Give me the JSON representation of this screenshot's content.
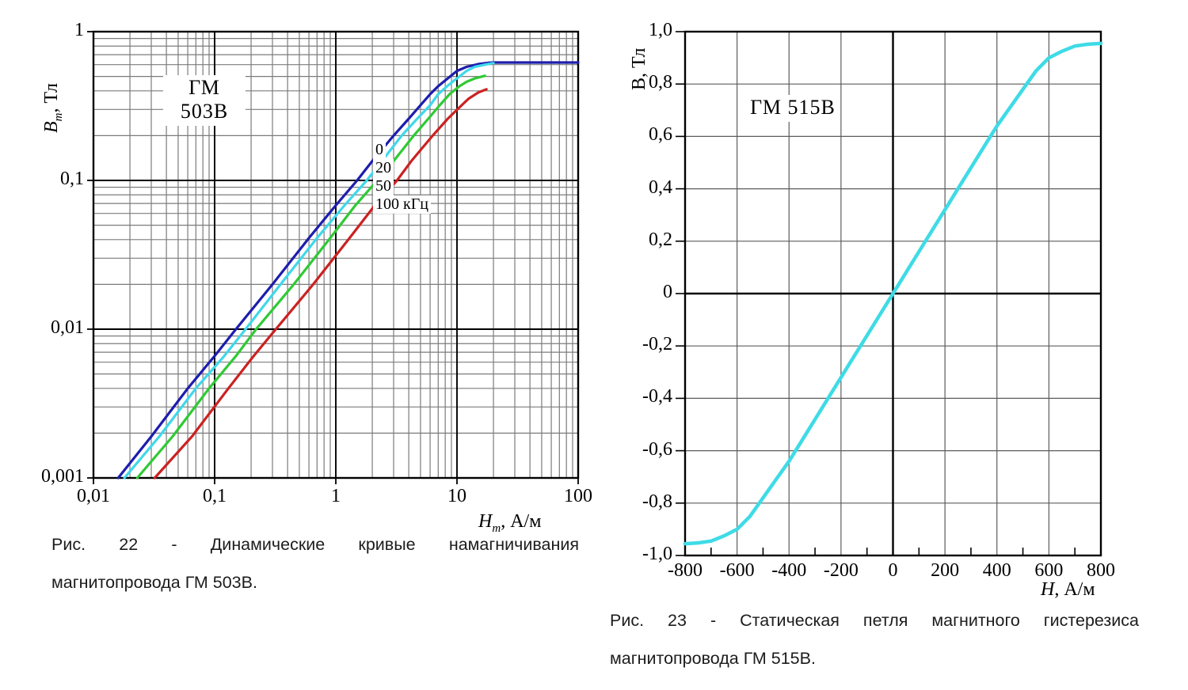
{
  "figure22": {
    "title": "ГМ 503В",
    "y_axis": {
      "symbol": "B",
      "sub": "m",
      "unit": ", Тл"
    },
    "x_axis": {
      "symbol": "H",
      "sub": "m",
      "unit": ", А/м"
    },
    "legend": [
      {
        "label": "0",
        "color": "#1d1dae"
      },
      {
        "label": "20",
        "color": "#3fd8ea"
      },
      {
        "label": "50",
        "color": "#2fca34"
      },
      {
        "label": "100 кГц",
        "color": "#cc2121"
      }
    ],
    "caption": {
      "line1": "Рис. 22 - Динамические кривые намагничивания",
      "line2": "магнитопровода ГМ 503В."
    }
  },
  "figure23": {
    "title": "ГМ 515В",
    "y_axis": {
      "symbol": "В",
      "sub": "",
      "unit": ", Тл"
    },
    "x_axis": {
      "symbol": "H",
      "sub": "",
      "unit": ", А/м"
    },
    "caption": {
      "line1": "Рис. 23 -  Статическая петля магнитного гистерезиса",
      "line2": "магнитопровода ГМ 515В."
    }
  },
  "chart_data": [
    {
      "type": "line",
      "title": "ГМ 503В",
      "subtitle": "Динамические кривые намагничивания магнитопровода ГМ 503В",
      "xlabel": "Hm, А/м",
      "ylabel": "Bm, Тл",
      "xscale": "log",
      "yscale": "log",
      "xlim": [
        0.01,
        100
      ],
      "ylim": [
        0.001,
        1
      ],
      "grid": "both-major-minor",
      "legend_position": "inside-upper-middle",
      "xticks": [
        {
          "v": 0.01,
          "label": "0,01"
        },
        {
          "v": 0.1,
          "label": "0,1"
        },
        {
          "v": 1,
          "label": "1"
        },
        {
          "v": 10,
          "label": "10"
        },
        {
          "v": 100,
          "label": "100"
        }
      ],
      "yticks": [
        {
          "v": 1,
          "label": "1"
        },
        {
          "v": 0.1,
          "label": "0,1"
        },
        {
          "v": 0.01,
          "label": "0,01"
        },
        {
          "v": 0.001,
          "label": "0,001"
        }
      ],
      "series": [
        {
          "name": "0 кГц",
          "color": "#1d1dae",
          "points": [
            [
              0.016,
              0.001
            ],
            [
              0.03,
              0.0019
            ],
            [
              0.06,
              0.004
            ],
            [
              0.1,
              0.0066
            ],
            [
              0.15,
              0.01
            ],
            [
              0.3,
              0.02
            ],
            [
              0.6,
              0.041
            ],
            [
              1,
              0.068
            ],
            [
              1.5,
              0.1
            ],
            [
              2,
              0.135
            ],
            [
              3,
              0.2
            ],
            [
              4,
              0.26
            ],
            [
              5,
              0.32
            ],
            [
              6,
              0.38
            ],
            [
              7,
              0.43
            ],
            [
              8,
              0.47
            ],
            [
              10,
              0.545
            ],
            [
              12,
              0.58
            ],
            [
              15,
              0.605
            ],
            [
              18,
              0.617
            ],
            [
              20,
              0.62
            ],
            [
              40,
              0.62
            ],
            [
              100,
              0.62
            ]
          ]
        },
        {
          "name": "20 кГц",
          "color": "#3fd8ea",
          "points": [
            [
              0.018,
              0.001
            ],
            [
              0.035,
              0.0019
            ],
            [
              0.07,
              0.004
            ],
            [
              0.12,
              0.0066
            ],
            [
              0.18,
              0.01
            ],
            [
              0.35,
              0.02
            ],
            [
              0.7,
              0.041
            ],
            [
              1.18,
              0.068
            ],
            [
              1.8,
              0.1
            ],
            [
              2.4,
              0.135
            ],
            [
              3.5,
              0.2
            ],
            [
              4.7,
              0.26
            ],
            [
              6,
              0.32
            ],
            [
              7,
              0.38
            ],
            [
              8.3,
              0.43
            ],
            [
              9.5,
              0.47
            ],
            [
              12,
              0.545
            ],
            [
              14,
              0.58
            ],
            [
              17,
              0.6
            ],
            [
              20,
              0.615
            ]
          ]
        },
        {
          "name": "50 кГц",
          "color": "#2fca34",
          "points": [
            [
              0.023,
              0.001
            ],
            [
              0.045,
              0.0019
            ],
            [
              0.09,
              0.004
            ],
            [
              0.15,
              0.0066
            ],
            [
              0.22,
              0.01
            ],
            [
              0.45,
              0.02
            ],
            [
              0.9,
              0.041
            ],
            [
              1.45,
              0.068
            ],
            [
              2.2,
              0.1
            ],
            [
              3,
              0.135
            ],
            [
              4.4,
              0.2
            ],
            [
              5.8,
              0.26
            ],
            [
              7.2,
              0.32
            ],
            [
              8.7,
              0.38
            ],
            [
              10.5,
              0.43
            ],
            [
              12,
              0.46
            ],
            [
              14,
              0.485
            ],
            [
              17,
              0.505
            ]
          ]
        },
        {
          "name": "100 кГц",
          "color": "#cc2121",
          "points": [
            [
              0.032,
              0.001
            ],
            [
              0.065,
              0.0019
            ],
            [
              0.13,
              0.004
            ],
            [
              0.21,
              0.0066
            ],
            [
              0.32,
              0.01
            ],
            [
              0.65,
              0.02
            ],
            [
              1.3,
              0.041
            ],
            [
              2.1,
              0.068
            ],
            [
              3.2,
              0.1
            ],
            [
              4.2,
              0.135
            ],
            [
              6.3,
              0.2
            ],
            [
              8.4,
              0.26
            ],
            [
              10.5,
              0.31
            ],
            [
              12.5,
              0.355
            ],
            [
              15,
              0.39
            ],
            [
              17.5,
              0.41
            ]
          ]
        }
      ],
      "colors": {
        "minor_grid": "#7b7b7b",
        "major_grid": "#000000",
        "border": "#000000"
      }
    },
    {
      "type": "line",
      "title": "ГМ 515В",
      "subtitle": "Статическая петля магнитного гистерезиса магнитопровода ГМ 515В",
      "xlabel": "H, А/м",
      "ylabel": "В, Тл",
      "xscale": "linear",
      "yscale": "linear",
      "xlim": [
        -800,
        800
      ],
      "ylim": [
        -1.0,
        1.0
      ],
      "grid": "major",
      "x_grid_step": 200,
      "y_grid_step": 0.2,
      "x_minor_tick_step": 100,
      "xticks": [
        {
          "v": -800,
          "label": "-800"
        },
        {
          "v": -600,
          "label": "-600"
        },
        {
          "v": -400,
          "label": "-400"
        },
        {
          "v": -200,
          "label": "-200"
        },
        {
          "v": 0,
          "label": "0"
        },
        {
          "v": 200,
          "label": "200"
        },
        {
          "v": 400,
          "label": "400"
        },
        {
          "v": 600,
          "label": "600"
        },
        {
          "v": 800,
          "label": "800"
        }
      ],
      "yticks": [
        {
          "v": 1.0,
          "label": "1,0"
        },
        {
          "v": 0.8,
          "label": "0,8"
        },
        {
          "v": 0.6,
          "label": "0,6"
        },
        {
          "v": 0.4,
          "label": "0,4"
        },
        {
          "v": 0.2,
          "label": "0,2"
        },
        {
          "v": 0,
          "label": "0"
        },
        {
          "v": -0.2,
          "label": "-0,2"
        },
        {
          "v": -0.4,
          "label": "-0,4"
        },
        {
          "v": -0.6,
          "label": "-0,6"
        },
        {
          "v": -0.8,
          "label": "-0,8"
        },
        {
          "v": -1.0,
          "label": "-1,0"
        }
      ],
      "series": [
        {
          "name": "статическая петля гистерезиса",
          "color": "#3edbe6",
          "points": [
            [
              -800,
              -0.955
            ],
            [
              -750,
              -0.952
            ],
            [
              -700,
              -0.945
            ],
            [
              -650,
              -0.925
            ],
            [
              -600,
              -0.9
            ],
            [
              -550,
              -0.85
            ],
            [
              -500,
              -0.78
            ],
            [
              -450,
              -0.71
            ],
            [
              -400,
              -0.64
            ],
            [
              -350,
              -0.56
            ],
            [
              -300,
              -0.48
            ],
            [
              -250,
              -0.4
            ],
            [
              -200,
              -0.32
            ],
            [
              -150,
              -0.24
            ],
            [
              -100,
              -0.16
            ],
            [
              -50,
              -0.08
            ],
            [
              0,
              0
            ],
            [
              50,
              0.08
            ],
            [
              100,
              0.16
            ],
            [
              150,
              0.24
            ],
            [
              200,
              0.32
            ],
            [
              250,
              0.4
            ],
            [
              300,
              0.48
            ],
            [
              350,
              0.56
            ],
            [
              400,
              0.64
            ],
            [
              450,
              0.71
            ],
            [
              500,
              0.78
            ],
            [
              550,
              0.85
            ],
            [
              600,
              0.9
            ],
            [
              650,
              0.925
            ],
            [
              700,
              0.945
            ],
            [
              750,
              0.952
            ],
            [
              800,
              0.955
            ]
          ]
        }
      ],
      "colors": {
        "grid": "#5c5c5c",
        "axes": "#000000",
        "border": "#000000"
      }
    }
  ]
}
